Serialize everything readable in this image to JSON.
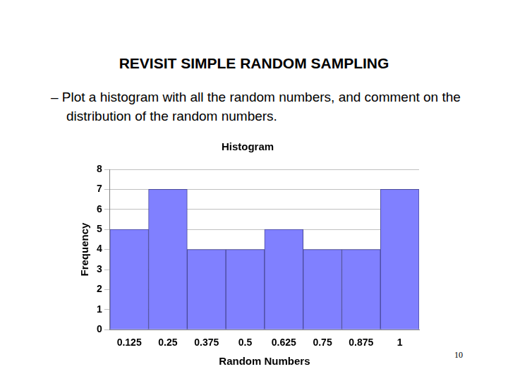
{
  "heading": "REVISIT SIMPLE RANDOM SAMPLING",
  "bullet": "– Plot a histogram with all the random numbers, and comment on the distribution of the random numbers.",
  "page_number": "10",
  "chart_data": {
    "type": "bar",
    "title": "Histogram",
    "x_label": "Random Numbers",
    "y_label": "Frequency",
    "categories": [
      "0.125",
      "0.25",
      "0.375",
      "0.5",
      "0.625",
      "0.75",
      "0.875",
      "1"
    ],
    "values": [
      5,
      7,
      4,
      4,
      5,
      4,
      4,
      7
    ],
    "color": "#8080ff",
    "ylim": [
      0,
      8
    ],
    "yticks": [
      0,
      1,
      2,
      3,
      4,
      5,
      6,
      7,
      8
    ],
    "grid": true
  }
}
